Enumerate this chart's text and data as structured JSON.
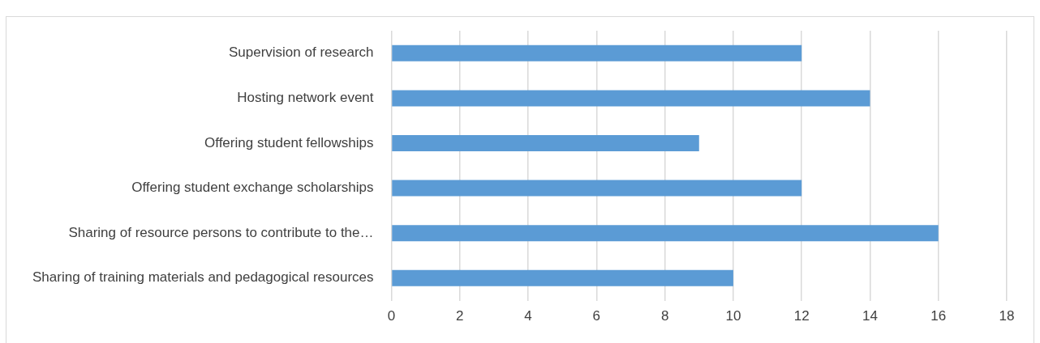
{
  "chart_data": {
    "type": "bar",
    "orientation": "horizontal",
    "categories": [
      "Supervision of research",
      "Hosting network event",
      "Offering student fellowships",
      "Offering student exchange scholarships",
      "Sharing of resource persons to contribute to the…",
      "Sharing of training materials and pedagogical resources"
    ],
    "values": [
      12,
      14,
      9,
      12,
      16,
      10
    ],
    "color": "#5b9bd5",
    "xlim": [
      0,
      18
    ],
    "xticks": [
      0,
      2,
      4,
      6,
      8,
      10,
      12,
      14,
      16,
      18
    ],
    "grid": "x",
    "legend": false
  }
}
